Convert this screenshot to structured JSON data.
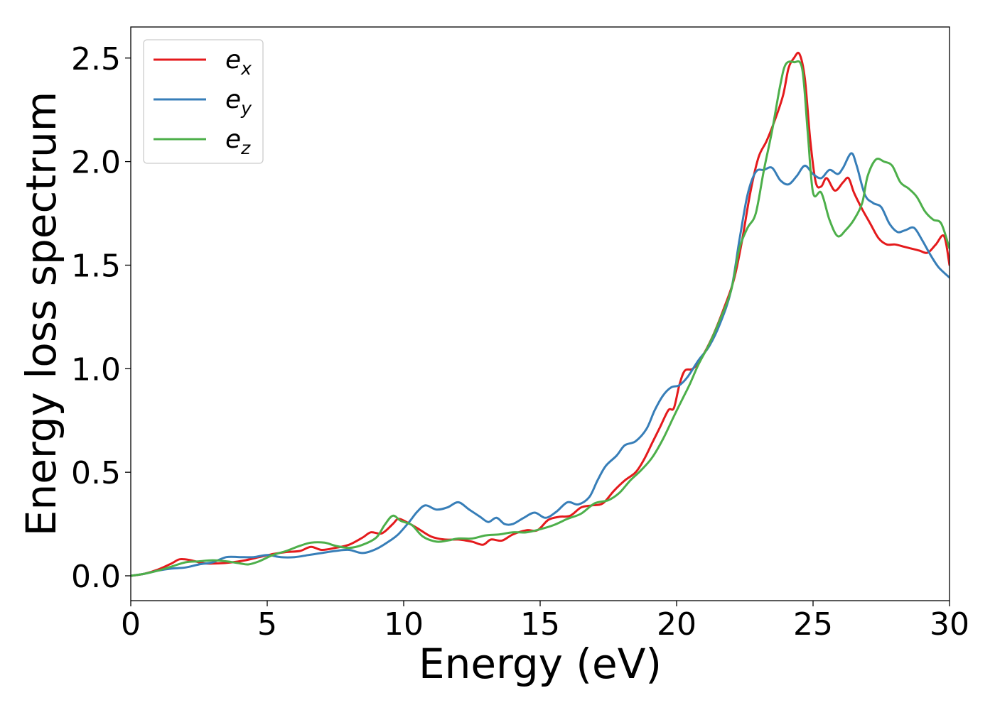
{
  "chart_data": {
    "type": "line",
    "title": "",
    "xlabel": "Energy (eV)",
    "ylabel": "Energy loss spectrum",
    "xlim": [
      0,
      30
    ],
    "ylim": [
      -0.12,
      2.65
    ],
    "xticks": [
      0,
      5,
      10,
      15,
      20,
      25,
      30
    ],
    "yticks": [
      0.0,
      0.5,
      1.0,
      1.5,
      2.0,
      2.5
    ],
    "xtick_labels": [
      "0",
      "5",
      "10",
      "15",
      "20",
      "25",
      "30"
    ],
    "ytick_labels": [
      "0.0",
      "0.5",
      "1.0",
      "1.5",
      "2.0",
      "2.5"
    ],
    "grid": false,
    "legend_position": "top-left",
    "series": [
      {
        "name": "e_x",
        "legend_base": "e",
        "legend_sub": "x",
        "color": "#e41a1c",
        "points": [
          [
            0,
            0.0
          ],
          [
            0.5,
            0.01
          ],
          [
            1,
            0.03
          ],
          [
            1.5,
            0.06
          ],
          [
            1.8,
            0.08
          ],
          [
            2.2,
            0.075
          ],
          [
            2.7,
            0.06
          ],
          [
            3.2,
            0.06
          ],
          [
            3.7,
            0.065
          ],
          [
            4.2,
            0.075
          ],
          [
            4.7,
            0.09
          ],
          [
            5.2,
            0.105
          ],
          [
            5.7,
            0.115
          ],
          [
            6.2,
            0.12
          ],
          [
            6.6,
            0.14
          ],
          [
            7,
            0.125
          ],
          [
            7.5,
            0.135
          ],
          [
            8,
            0.15
          ],
          [
            8.5,
            0.185
          ],
          [
            8.8,
            0.21
          ],
          [
            9.2,
            0.205
          ],
          [
            9.6,
            0.25
          ],
          [
            9.8,
            0.275
          ],
          [
            10.1,
            0.26
          ],
          [
            10.5,
            0.23
          ],
          [
            11,
            0.19
          ],
          [
            11.5,
            0.175
          ],
          [
            12,
            0.175
          ],
          [
            12.5,
            0.165
          ],
          [
            12.9,
            0.15
          ],
          [
            13.2,
            0.175
          ],
          [
            13.6,
            0.17
          ],
          [
            14,
            0.2
          ],
          [
            14.5,
            0.22
          ],
          [
            14.9,
            0.22
          ],
          [
            15.3,
            0.27
          ],
          [
            15.7,
            0.285
          ],
          [
            16.1,
            0.29
          ],
          [
            16.5,
            0.33
          ],
          [
            16.9,
            0.34
          ],
          [
            17.3,
            0.35
          ],
          [
            17.7,
            0.41
          ],
          [
            18.1,
            0.46
          ],
          [
            18.5,
            0.5
          ],
          [
            18.8,
            0.56
          ],
          [
            19.1,
            0.64
          ],
          [
            19.4,
            0.72
          ],
          [
            19.7,
            0.8
          ],
          [
            19.9,
            0.81
          ],
          [
            20.1,
            0.92
          ],
          [
            20.3,
            0.99
          ],
          [
            20.6,
            1.0
          ],
          [
            20.9,
            1.05
          ],
          [
            21.3,
            1.15
          ],
          [
            21.7,
            1.28
          ],
          [
            22.1,
            1.43
          ],
          [
            22.4,
            1.62
          ],
          [
            22.7,
            1.85
          ],
          [
            23,
            2.02
          ],
          [
            23.3,
            2.1
          ],
          [
            23.6,
            2.2
          ],
          [
            23.9,
            2.32
          ],
          [
            24.1,
            2.45
          ],
          [
            24.3,
            2.5
          ],
          [
            24.5,
            2.52
          ],
          [
            24.7,
            2.4
          ],
          [
            24.9,
            2.1
          ],
          [
            25.1,
            1.9
          ],
          [
            25.3,
            1.88
          ],
          [
            25.5,
            1.92
          ],
          [
            25.8,
            1.86
          ],
          [
            26.1,
            1.9
          ],
          [
            26.3,
            1.92
          ],
          [
            26.5,
            1.85
          ],
          [
            26.8,
            1.77
          ],
          [
            27.1,
            1.7
          ],
          [
            27.4,
            1.63
          ],
          [
            27.7,
            1.6
          ],
          [
            28,
            1.6
          ],
          [
            28.3,
            1.59
          ],
          [
            28.6,
            1.58
          ],
          [
            28.9,
            1.57
          ],
          [
            29.2,
            1.56
          ],
          [
            29.5,
            1.6
          ],
          [
            29.8,
            1.64
          ],
          [
            30,
            1.5
          ]
        ]
      },
      {
        "name": "e_y",
        "legend_base": "e",
        "legend_sub": "y",
        "color": "#377eb8",
        "points": [
          [
            0,
            0.0
          ],
          [
            0.5,
            0.01
          ],
          [
            1,
            0.025
          ],
          [
            1.5,
            0.035
          ],
          [
            2,
            0.04
          ],
          [
            2.5,
            0.055
          ],
          [
            3,
            0.065
          ],
          [
            3.5,
            0.09
          ],
          [
            4,
            0.09
          ],
          [
            4.5,
            0.09
          ],
          [
            5,
            0.1
          ],
          [
            5.5,
            0.09
          ],
          [
            6,
            0.09
          ],
          [
            6.5,
            0.1
          ],
          [
            7,
            0.11
          ],
          [
            7.5,
            0.12
          ],
          [
            8,
            0.125
          ],
          [
            8.5,
            0.11
          ],
          [
            9,
            0.13
          ],
          [
            9.5,
            0.17
          ],
          [
            9.8,
            0.2
          ],
          [
            10.2,
            0.26
          ],
          [
            10.5,
            0.31
          ],
          [
            10.8,
            0.34
          ],
          [
            11.2,
            0.32
          ],
          [
            11.6,
            0.33
          ],
          [
            12,
            0.355
          ],
          [
            12.4,
            0.32
          ],
          [
            12.8,
            0.285
          ],
          [
            13.1,
            0.26
          ],
          [
            13.4,
            0.28
          ],
          [
            13.7,
            0.25
          ],
          [
            14,
            0.25
          ],
          [
            14.4,
            0.28
          ],
          [
            14.8,
            0.305
          ],
          [
            15.2,
            0.28
          ],
          [
            15.6,
            0.31
          ],
          [
            16,
            0.355
          ],
          [
            16.4,
            0.345
          ],
          [
            16.8,
            0.38
          ],
          [
            17.1,
            0.46
          ],
          [
            17.4,
            0.53
          ],
          [
            17.8,
            0.58
          ],
          [
            18.1,
            0.63
          ],
          [
            18.5,
            0.65
          ],
          [
            18.9,
            0.71
          ],
          [
            19.2,
            0.8
          ],
          [
            19.5,
            0.87
          ],
          [
            19.8,
            0.91
          ],
          [
            20.1,
            0.92
          ],
          [
            20.4,
            0.96
          ],
          [
            20.8,
            1.04
          ],
          [
            21.2,
            1.11
          ],
          [
            21.6,
            1.22
          ],
          [
            22,
            1.38
          ],
          [
            22.3,
            1.62
          ],
          [
            22.6,
            1.84
          ],
          [
            22.9,
            1.95
          ],
          [
            23.2,
            1.96
          ],
          [
            23.5,
            1.97
          ],
          [
            23.8,
            1.91
          ],
          [
            24.1,
            1.89
          ],
          [
            24.4,
            1.93
          ],
          [
            24.7,
            1.98
          ],
          [
            25,
            1.94
          ],
          [
            25.3,
            1.92
          ],
          [
            25.6,
            1.96
          ],
          [
            25.9,
            1.94
          ],
          [
            26.1,
            1.97
          ],
          [
            26.4,
            2.04
          ],
          [
            26.6,
            1.98
          ],
          [
            26.9,
            1.84
          ],
          [
            27.2,
            1.8
          ],
          [
            27.5,
            1.78
          ],
          [
            27.8,
            1.7
          ],
          [
            28.1,
            1.66
          ],
          [
            28.4,
            1.67
          ],
          [
            28.7,
            1.68
          ],
          [
            29,
            1.62
          ],
          [
            29.3,
            1.55
          ],
          [
            29.6,
            1.49
          ],
          [
            30,
            1.44
          ]
        ]
      },
      {
        "name": "e_z",
        "legend_base": "e",
        "legend_sub": "z",
        "color": "#4daf4a",
        "points": [
          [
            0,
            0.0
          ],
          [
            0.5,
            0.01
          ],
          [
            1,
            0.025
          ],
          [
            1.5,
            0.045
          ],
          [
            2,
            0.065
          ],
          [
            2.5,
            0.07
          ],
          [
            3,
            0.075
          ],
          [
            3.5,
            0.07
          ],
          [
            4,
            0.06
          ],
          [
            4.3,
            0.055
          ],
          [
            4.7,
            0.07
          ],
          [
            5.2,
            0.1
          ],
          [
            5.7,
            0.12
          ],
          [
            6.2,
            0.145
          ],
          [
            6.6,
            0.16
          ],
          [
            7.1,
            0.16
          ],
          [
            7.5,
            0.145
          ],
          [
            8,
            0.135
          ],
          [
            8.5,
            0.15
          ],
          [
            9,
            0.185
          ],
          [
            9.3,
            0.245
          ],
          [
            9.6,
            0.29
          ],
          [
            9.9,
            0.265
          ],
          [
            10.3,
            0.245
          ],
          [
            10.7,
            0.19
          ],
          [
            11.2,
            0.165
          ],
          [
            11.6,
            0.17
          ],
          [
            12,
            0.18
          ],
          [
            12.5,
            0.18
          ],
          [
            13,
            0.195
          ],
          [
            13.5,
            0.2
          ],
          [
            14,
            0.21
          ],
          [
            14.5,
            0.21
          ],
          [
            15,
            0.225
          ],
          [
            15.5,
            0.245
          ],
          [
            16,
            0.275
          ],
          [
            16.5,
            0.3
          ],
          [
            17,
            0.35
          ],
          [
            17.5,
            0.365
          ],
          [
            17.9,
            0.4
          ],
          [
            18.3,
            0.46
          ],
          [
            18.7,
            0.51
          ],
          [
            19.1,
            0.57
          ],
          [
            19.5,
            0.66
          ],
          [
            19.9,
            0.77
          ],
          [
            20.2,
            0.85
          ],
          [
            20.5,
            0.93
          ],
          [
            20.8,
            1.02
          ],
          [
            21.2,
            1.12
          ],
          [
            21.6,
            1.24
          ],
          [
            22,
            1.38
          ],
          [
            22.3,
            1.58
          ],
          [
            22.6,
            1.68
          ],
          [
            22.9,
            1.75
          ],
          [
            23.2,
            1.96
          ],
          [
            23.5,
            2.15
          ],
          [
            23.8,
            2.37
          ],
          [
            24,
            2.47
          ],
          [
            24.3,
            2.48
          ],
          [
            24.6,
            2.45
          ],
          [
            24.8,
            2.15
          ],
          [
            25,
            1.85
          ],
          [
            25.3,
            1.85
          ],
          [
            25.6,
            1.72
          ],
          [
            25.9,
            1.64
          ],
          [
            26.2,
            1.67
          ],
          [
            26.5,
            1.72
          ],
          [
            26.8,
            1.8
          ],
          [
            27,
            1.93
          ],
          [
            27.3,
            2.01
          ],
          [
            27.6,
            2.0
          ],
          [
            27.9,
            1.98
          ],
          [
            28.2,
            1.9
          ],
          [
            28.5,
            1.87
          ],
          [
            28.8,
            1.83
          ],
          [
            29.1,
            1.76
          ],
          [
            29.4,
            1.72
          ],
          [
            29.7,
            1.7
          ],
          [
            30,
            1.58
          ]
        ]
      }
    ]
  }
}
